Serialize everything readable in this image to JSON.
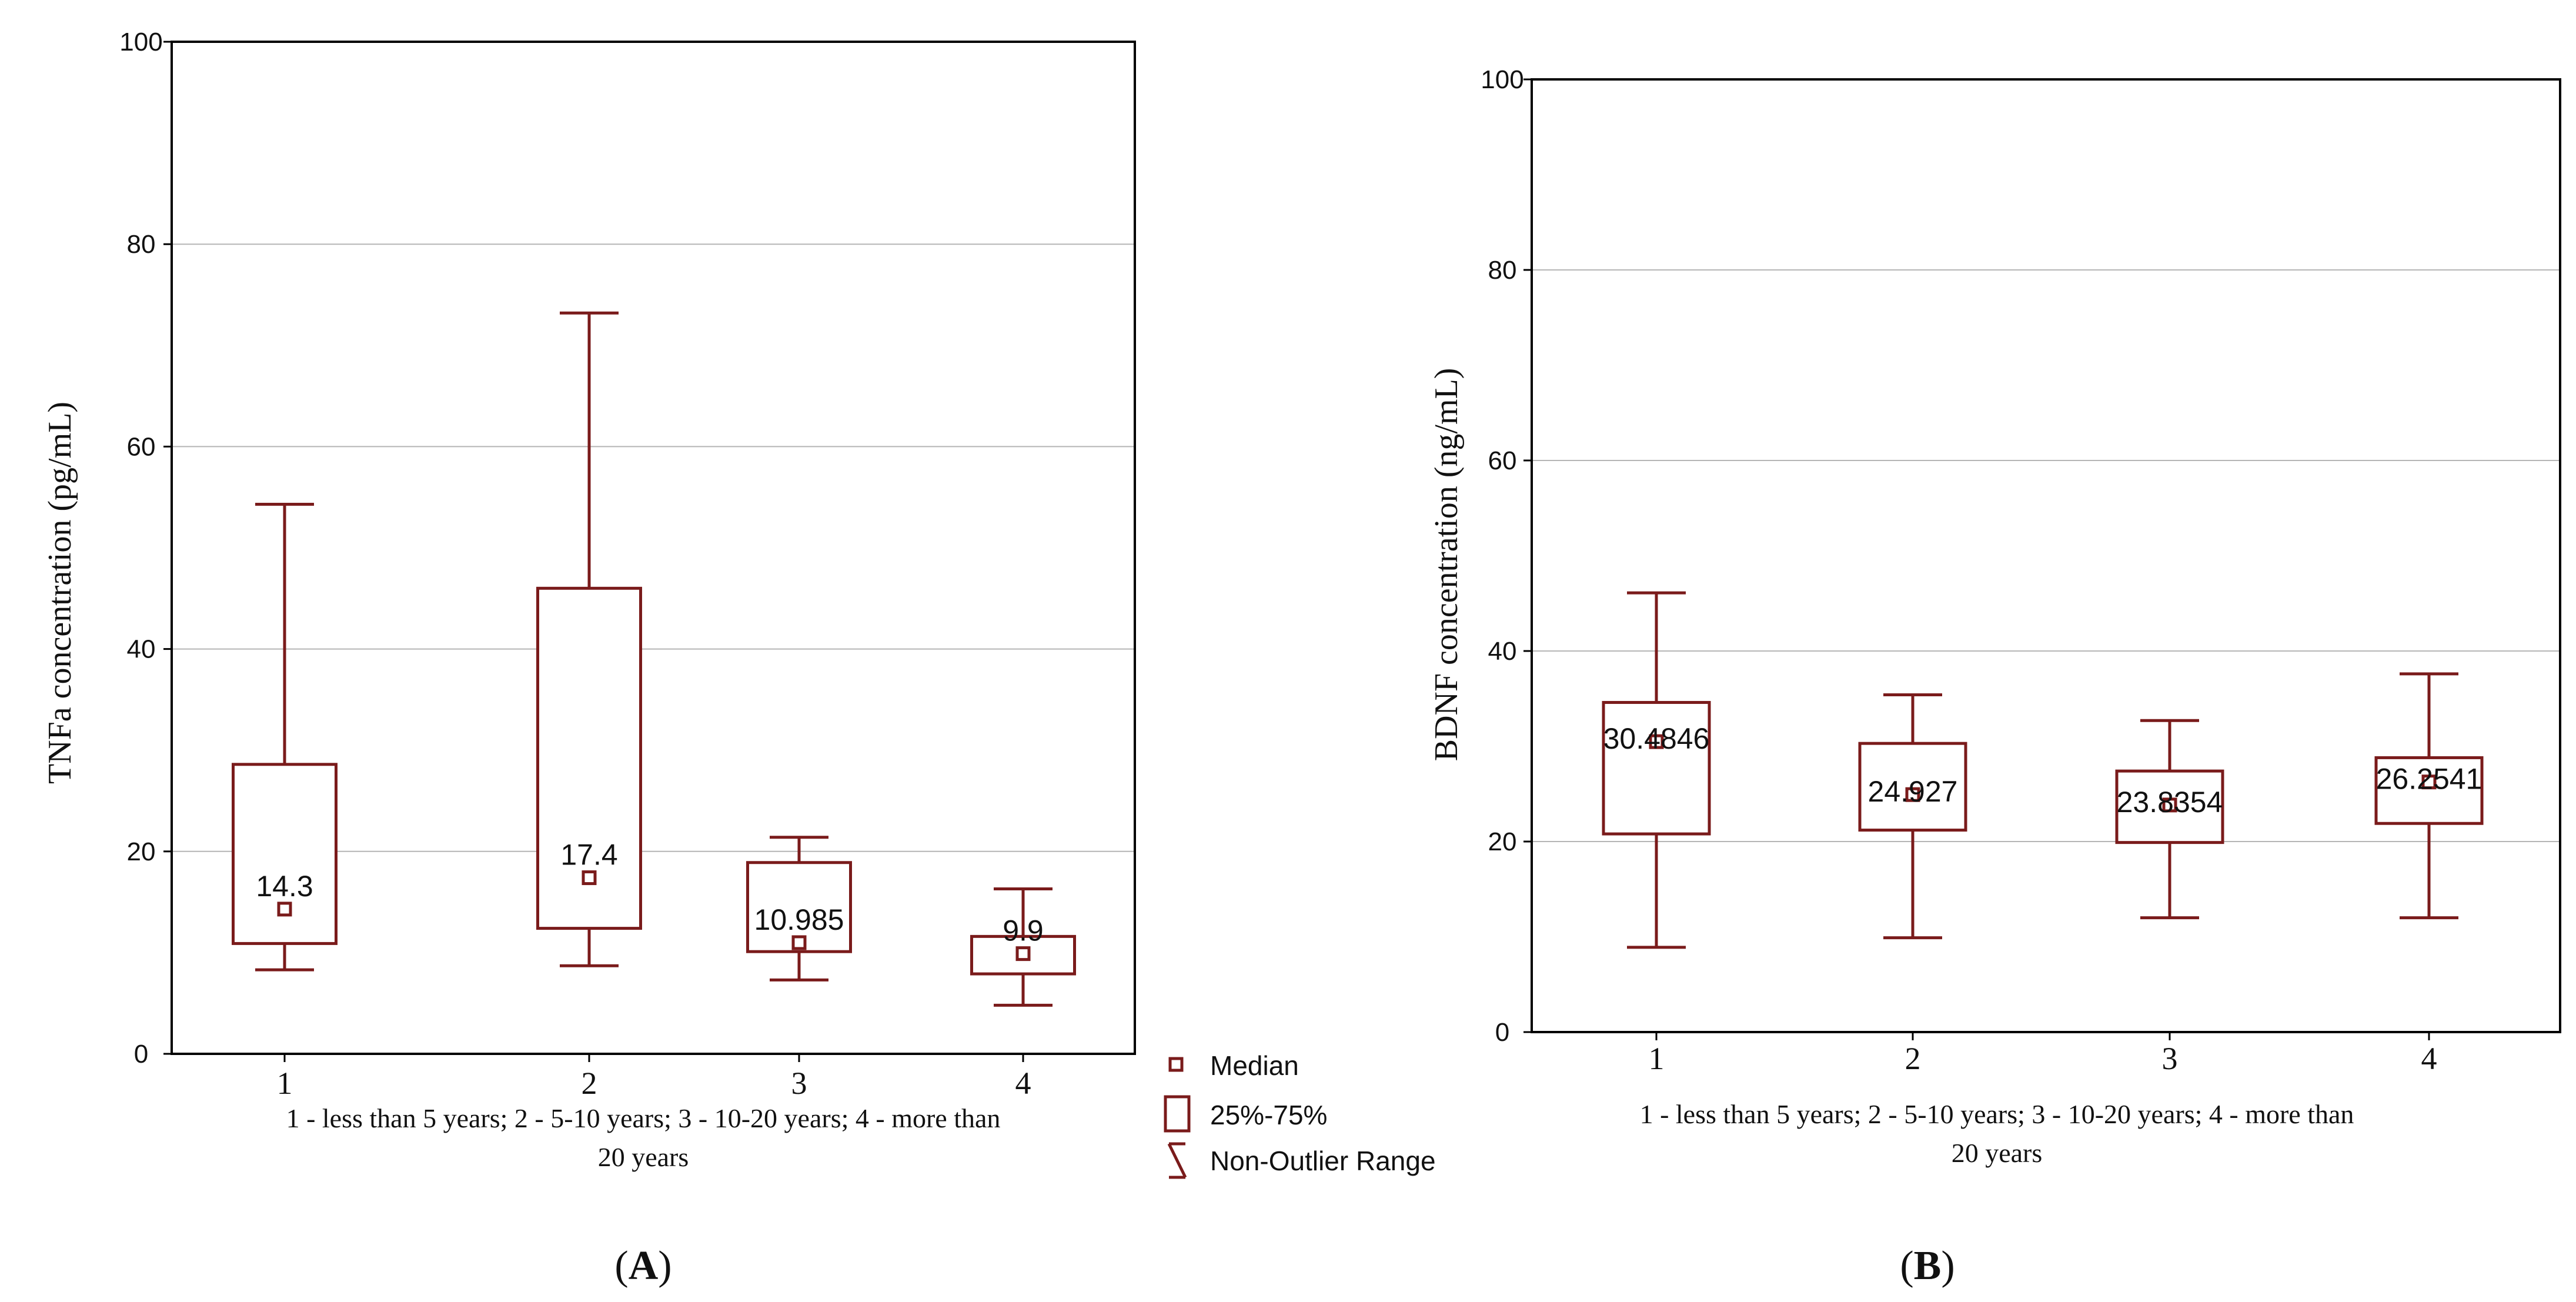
{
  "chart_data": [
    {
      "panel": "(A)",
      "panel_letter": "A",
      "type": "boxplot",
      "ylabel": "TNFa concentration (pg/mL)",
      "xlabel_line1": "1 - less than 5 years; 2 - 5-10 years; 3 - 10-20 years; 4 - more than",
      "xlabel_line2": "20 years",
      "ylim": [
        0,
        100
      ],
      "yticks": [
        0,
        20,
        40,
        60,
        80,
        100
      ],
      "grid": true,
      "categories": [
        "1",
        "2",
        "3",
        "4"
      ],
      "boxes": [
        {
          "category": "1",
          "min": 8.3,
          "q1": 10.9,
          "median": 14.3,
          "q3": 28.6,
          "max": 54.3,
          "label": "14.3"
        },
        {
          "category": "2",
          "min": 8.7,
          "q1": 12.4,
          "median": 17.4,
          "q3": 46.0,
          "max": 73.2,
          "label": "17.4"
        },
        {
          "category": "3",
          "min": 7.3,
          "q1": 10.1,
          "median": 10.985,
          "q3": 18.9,
          "max": 21.4,
          "label": "10.985"
        },
        {
          "category": "4",
          "min": 4.8,
          "q1": 7.9,
          "median": 9.9,
          "q3": 11.6,
          "max": 16.3,
          "label": "9.9"
        }
      ]
    },
    {
      "panel": "(B)",
      "panel_letter": "B",
      "type": "boxplot",
      "ylabel": "BDNF concentration  (ng/mL)",
      "xlabel_line1": "1 - less than 5 years; 2 - 5-10 years; 3 - 10-20 years; 4 - more than",
      "xlabel_line2": "20 years",
      "ylim": [
        0,
        100
      ],
      "yticks": [
        0,
        20,
        40,
        60,
        80,
        100
      ],
      "grid": true,
      "categories": [
        "1",
        "2",
        "3",
        "4"
      ],
      "boxes": [
        {
          "category": "1",
          "min": 8.9,
          "q1": 20.8,
          "median": 30.4846,
          "q3": 34.6,
          "max": 46.1,
          "label": "30.4846"
        },
        {
          "category": "2",
          "min": 9.9,
          "q1": 21.2,
          "median": 24.927,
          "q3": 30.3,
          "max": 35.4,
          "label": "24.927"
        },
        {
          "category": "3",
          "min": 12.0,
          "q1": 19.9,
          "median": 23.8354,
          "q3": 27.4,
          "max": 32.7,
          "label": "23.8354"
        },
        {
          "category": "4",
          "min": 12.0,
          "q1": 21.9,
          "median": 26.2541,
          "q3": 28.8,
          "max": 37.6,
          "label": "26.2541"
        }
      ]
    }
  ],
  "legend": {
    "median": "Median",
    "box": "25%-75%",
    "range": "Non-Outlier Range"
  },
  "colors": {
    "box_stroke": "#7a1b1b",
    "grid": "#b5b5b5",
    "axis": "#000000"
  }
}
